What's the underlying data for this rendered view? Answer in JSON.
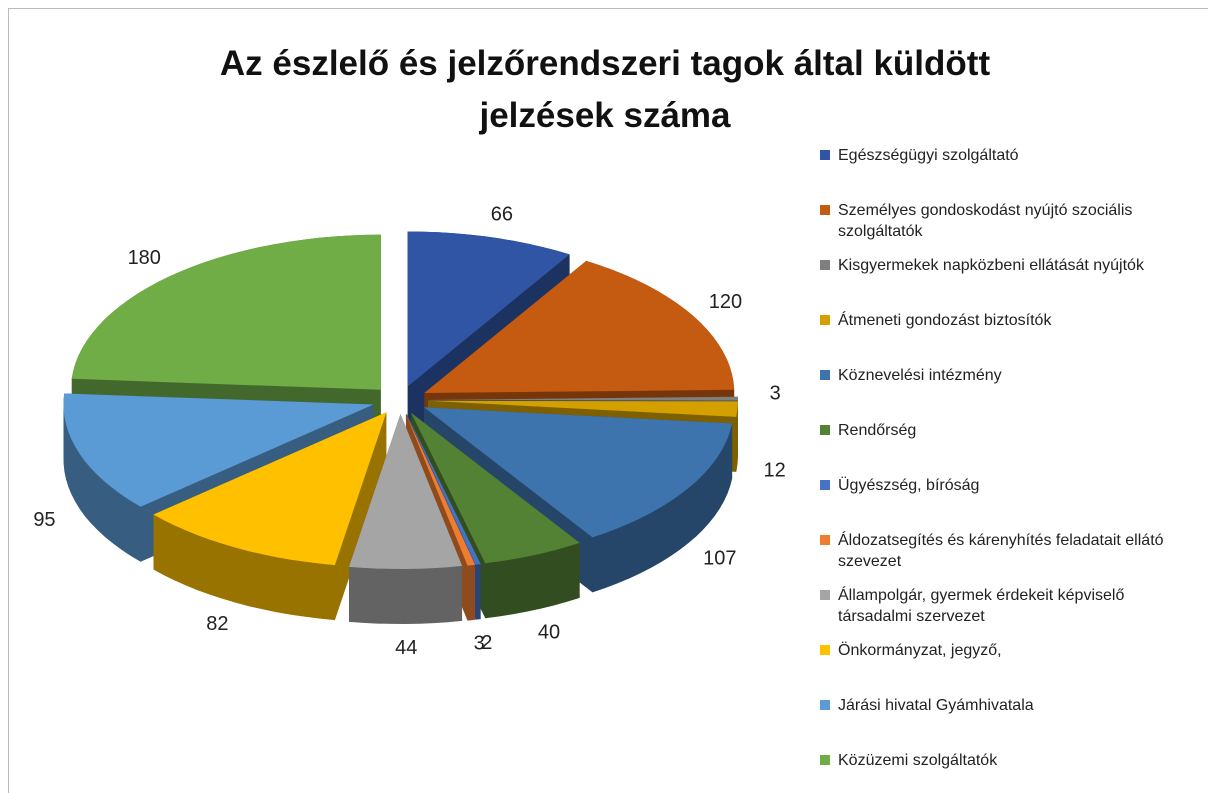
{
  "chart_data": {
    "type": "pie3d",
    "title": "Az észlelő és jelzőrendszeri tagok által küldött jelzések száma",
    "categories": [
      "Egészségügyi szolgáltató",
      "Személyes gondoskodást nyújtó szociális szolgáltatók",
      "Kisgyermekek napközbeni ellátását nyújtók",
      "Átmeneti gondozást biztosítók",
      "Köznevelési intézmény",
      "Rendőrség",
      "Ügyészség, bíróság",
      "Áldozatsegítés és kárenyhítés feladatait ellátó szevezet",
      "Állampolgár, gyermek érdekeit képviselő társadalmi szervezet",
      "Önkormányzat, jegyző,",
      "Járási hivatal Gyámhivatala",
      "Közüzemi szolgáltatók"
    ],
    "values": [
      66,
      120,
      3,
      12,
      107,
      40,
      2,
      3,
      44,
      82,
      95,
      180
    ],
    "colors": [
      "#2f55a4",
      "#c55a11",
      "#7f7f7f",
      "#d4a000",
      "#3d74ad",
      "#548235",
      "#4472c4",
      "#ed7d31",
      "#a5a5a5",
      "#ffc000",
      "#5b9bd5",
      "#70ad47"
    ],
    "legend": "right"
  }
}
